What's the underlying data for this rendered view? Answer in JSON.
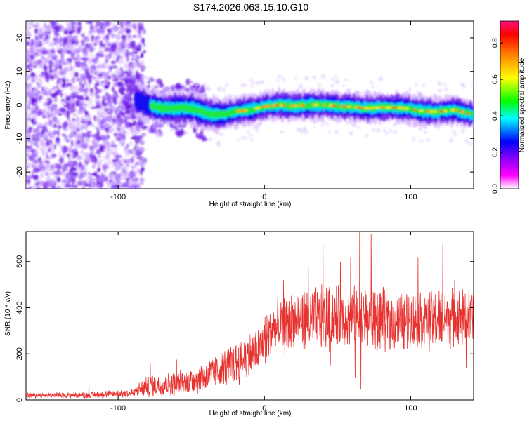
{
  "title": "S174.2026.063.15.10.G10",
  "chart_data": [
    {
      "type": "heatmap",
      "xlabel": "Height of straight line (km)",
      "ylabel": "Frequency (Hz)",
      "xlim": [
        -163,
        143
      ],
      "ylim": [
        -25,
        25
      ],
      "x_ticks": [
        -100,
        0,
        100
      ],
      "y_ticks": [
        -20,
        -10,
        0,
        10,
        20
      ],
      "colorbar": {
        "label": "Normalized spectral amplitude",
        "range": [
          0,
          0.92
        ],
        "ticks": [
          "0.0",
          "0.2",
          "0.4",
          "0.6",
          "0.8"
        ],
        "colormap": [
          "#ffffff",
          "#ff00ff",
          "#8a00ff",
          "#0000ff",
          "#00ffff",
          "#00ff00",
          "#ffff00",
          "#ff8000",
          "#ff0000",
          "#ff1080"
        ]
      },
      "ridge": [
        {
          "x": -90,
          "y": 2
        },
        {
          "x": -80,
          "y": 0
        },
        {
          "x": -70,
          "y": -1
        },
        {
          "x": -60,
          "y": -1
        },
        {
          "x": -50,
          "y": -1
        },
        {
          "x": -40,
          "y": -2.5
        },
        {
          "x": -30,
          "y": -3
        },
        {
          "x": -20,
          "y": -2
        },
        {
          "x": -10,
          "y": -1.5
        },
        {
          "x": 0,
          "y": -0.5
        },
        {
          "x": 10,
          "y": 0
        },
        {
          "x": 20,
          "y": -0.3
        },
        {
          "x": 30,
          "y": 0
        },
        {
          "x": 40,
          "y": 0
        },
        {
          "x": 50,
          "y": -0.3
        },
        {
          "x": 60,
          "y": -0.6
        },
        {
          "x": 70,
          "y": -1
        },
        {
          "x": 80,
          "y": -0.8
        },
        {
          "x": 90,
          "y": -0.8
        },
        {
          "x": 100,
          "y": -1.2
        },
        {
          "x": 110,
          "y": -2
        },
        {
          "x": 120,
          "y": -2
        },
        {
          "x": 130,
          "y": -1.5
        },
        {
          "x": 143,
          "y": -3
        }
      ],
      "noise_region": [
        -163,
        -85
      ]
    },
    {
      "type": "line",
      "xlabel": "Height of straight line (km)",
      "ylabel": "SNR (10 * v/v)",
      "xlim": [
        -163,
        143
      ],
      "ylim": [
        0,
        730
      ],
      "x_ticks": [
        -100,
        0,
        100
      ],
      "y_ticks": [
        0,
        200,
        400,
        600
      ],
      "color": "#e8322f",
      "series": [
        {
          "name": "SNR",
          "envelope": [
            {
              "x": -163,
              "mean": 20,
              "spread": 10
            },
            {
              "x": -120,
              "mean": 22,
              "spread": 12
            },
            {
              "x": -90,
              "mean": 30,
              "spread": 18
            },
            {
              "x": -80,
              "mean": 60,
              "spread": 40
            },
            {
              "x": -60,
              "mean": 70,
              "spread": 45
            },
            {
              "x": -40,
              "mean": 100,
              "spread": 60
            },
            {
              "x": -20,
              "mean": 160,
              "spread": 80
            },
            {
              "x": -5,
              "mean": 210,
              "spread": 90
            },
            {
              "x": 5,
              "mean": 300,
              "spread": 100
            },
            {
              "x": 20,
              "mean": 340,
              "spread": 110
            },
            {
              "x": 40,
              "mean": 360,
              "spread": 120
            },
            {
              "x": 70,
              "mean": 350,
              "spread": 120
            },
            {
              "x": 100,
              "mean": 340,
              "spread": 110
            },
            {
              "x": 120,
              "mean": 350,
              "spread": 110
            },
            {
              "x": 143,
              "mean": 360,
              "spread": 110
            }
          ],
          "peaks": [
            {
              "x": -120,
              "y": 80
            },
            {
              "x": -78,
              "y": 160
            },
            {
              "x": -60,
              "y": 175
            },
            {
              "x": 13,
              "y": 520
            },
            {
              "x": 40,
              "y": 680
            },
            {
              "x": 52,
              "y": 600
            },
            {
              "x": 59,
              "y": 620
            },
            {
              "x": 65,
              "y": 730
            },
            {
              "x": 73,
              "y": 720
            },
            {
              "x": 105,
              "y": 620
            },
            {
              "x": 122,
              "y": 680
            },
            {
              "x": 130,
              "y": 520
            },
            {
              "x": 30,
              "y": 580
            }
          ],
          "dips": [
            {
              "x": 66,
              "y": 45
            },
            {
              "x": 62,
              "y": 95
            },
            {
              "x": 138,
              "y": 140
            },
            {
              "x": 45,
              "y": 150
            }
          ]
        }
      ]
    }
  ]
}
